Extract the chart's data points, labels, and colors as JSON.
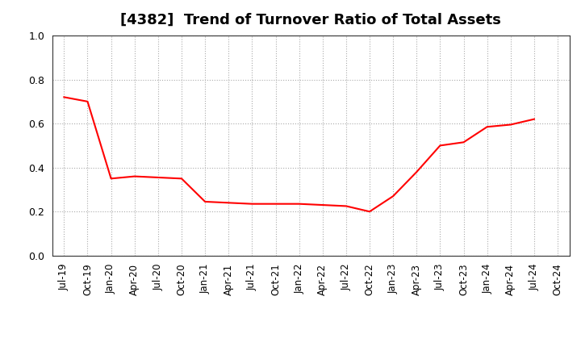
{
  "title": "[4382]  Trend of Turnover Ratio of Total Assets",
  "line_color": "#FF0000",
  "line_width": 1.5,
  "background_color": "#FFFFFF",
  "grid_color": "#AAAAAA",
  "ylim": [
    0.0,
    1.0
  ],
  "yticks": [
    0.0,
    0.2,
    0.4,
    0.6,
    0.8,
    1.0
  ],
  "values": [
    0.72,
    0.7,
    0.35,
    0.36,
    0.355,
    0.35,
    0.245,
    0.24,
    0.235,
    0.235,
    0.235,
    0.23,
    0.225,
    0.2,
    0.27,
    0.38,
    0.5,
    0.515,
    0.585,
    0.595,
    0.62,
    null
  ],
  "xtick_labels": [
    "Jul-19",
    "Oct-19",
    "Jan-20",
    "Apr-20",
    "Jul-20",
    "Oct-20",
    "Jan-21",
    "Apr-21",
    "Jul-21",
    "Oct-21",
    "Jan-22",
    "Apr-22",
    "Jul-22",
    "Oct-22",
    "Jan-23",
    "Apr-23",
    "Jul-23",
    "Oct-23",
    "Jan-24",
    "Apr-24",
    "Jul-24",
    "Oct-24"
  ],
  "title_fontsize": 13,
  "tick_fontsize": 8.5
}
